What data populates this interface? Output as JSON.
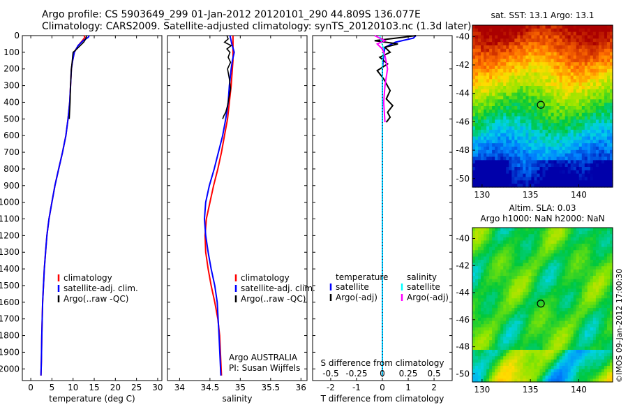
{
  "header": {
    "title_line1": "Argo profile: CS 5903649_299 01-Jan-2012 20120101_290 44.809S 136.077E",
    "title_line2": "Climatology: CARS2009. Satellite-adjusted climatology: synTS_20120103.nc (1.3d later)"
  },
  "colors": {
    "climatology": "#ff0000",
    "satellite": "#0000ff",
    "argo": "#000000",
    "sal_satellite": "#00ffff",
    "sal_argo": "#ff00ff"
  },
  "chart_data": [
    {
      "type": "line",
      "panel": "temperature",
      "xlabel": "temperature (deg C)",
      "ylabel": "",
      "xlim": [
        -2,
        31
      ],
      "ylim": [
        2070,
        0
      ],
      "xticks": [
        0,
        5,
        10,
        15,
        20,
        25,
        30
      ],
      "yticks": [
        0,
        100,
        200,
        300,
        400,
        500,
        600,
        700,
        800,
        900,
        1000,
        1100,
        1200,
        1300,
        1400,
        1500,
        1600,
        1700,
        1800,
        1900,
        2000
      ],
      "legend": [
        "climatology",
        "satellite-adj. clim.",
        "Argo(..raw -QC)"
      ],
      "series": [
        {
          "name": "climatology",
          "color": "#ff0000",
          "x": [
            12.6,
            12.8,
            12.2,
            11.2,
            10.3,
            9.9,
            9.6,
            9.4,
            9.2,
            8.8,
            8.3,
            7.5,
            6.6,
            5.7,
            5.0,
            4.3,
            3.8,
            3.5,
            3.2,
            3.0,
            2.8,
            2.6,
            2.5,
            2.4
          ],
          "y": [
            0,
            10,
            30,
            60,
            100,
            150,
            200,
            300,
            400,
            500,
            600,
            700,
            800,
            900,
            1000,
            1100,
            1200,
            1300,
            1400,
            1500,
            1600,
            1800,
            1950,
            2040
          ]
        },
        {
          "name": "satellite-adj. clim.",
          "color": "#0000ff",
          "x": [
            13.8,
            13.6,
            12.4,
            11.2,
            10.3,
            9.9,
            9.6,
            9.4,
            9.2,
            8.8,
            8.3,
            7.5,
            6.6,
            5.7,
            5.0,
            4.3,
            3.8,
            3.5,
            3.2,
            3.0,
            2.8,
            2.6,
            2.5,
            2.4
          ],
          "y": [
            0,
            10,
            30,
            60,
            100,
            150,
            200,
            300,
            400,
            500,
            600,
            700,
            800,
            900,
            1000,
            1100,
            1200,
            1300,
            1400,
            1500,
            1600,
            1800,
            1950,
            2040
          ]
        },
        {
          "name": "Argo(..raw -QC)",
          "color": "#000000",
          "x": [
            13.2,
            13.0,
            12.5,
            11.7,
            10.9,
            10.0,
            9.8,
            9.6,
            9.4,
            9.3,
            9.1
          ],
          "y": [
            0,
            20,
            40,
            60,
            80,
            100,
            150,
            200,
            300,
            400,
            500
          ]
        }
      ]
    },
    {
      "type": "line",
      "panel": "salinity",
      "xlabel": "salinity",
      "xlim": [
        33.8,
        36.1
      ],
      "ylim": [
        2070,
        0
      ],
      "xticks": [
        34,
        34.5,
        35,
        35.5,
        36
      ],
      "legend": [
        "climatology",
        "satellite-adj. clim.",
        "Argo(..raw -QC)"
      ],
      "annotation": [
        "Argo AUSTRALIA",
        "PI: Susan Wijffels"
      ],
      "series": [
        {
          "name": "climatology",
          "color": "#ff0000",
          "x": [
            34.88,
            34.88,
            34.88,
            34.88,
            34.87,
            34.85,
            34.82,
            34.79,
            34.74,
            34.69,
            34.63,
            34.56,
            34.5,
            34.44,
            34.42,
            34.43,
            34.47,
            34.52,
            34.58,
            34.63,
            34.66,
            34.69
          ],
          "y": [
            0,
            50,
            100,
            150,
            200,
            300,
            400,
            500,
            600,
            700,
            800,
            900,
            1000,
            1100,
            1200,
            1300,
            1400,
            1500,
            1600,
            1700,
            1800,
            2040
          ]
        },
        {
          "name": "satellite-adj. clim.",
          "color": "#0000ff",
          "x": [
            34.83,
            34.86,
            34.9,
            34.87,
            34.85,
            34.82,
            34.8,
            34.76,
            34.71,
            34.64,
            34.57,
            34.49,
            34.43,
            34.41,
            34.43,
            34.47,
            34.52,
            34.58,
            34.62,
            34.65,
            34.68
          ],
          "y": [
            0,
            50,
            100,
            150,
            200,
            300,
            400,
            500,
            600,
            700,
            800,
            900,
            1000,
            1100,
            1200,
            1300,
            1400,
            1500,
            1600,
            1800,
            2040
          ]
        },
        {
          "name": "Argo(..raw -QC)",
          "color": "#000000",
          "x": [
            34.78,
            34.8,
            34.74,
            34.85,
            34.78,
            34.83,
            34.8,
            34.84,
            34.79,
            34.82,
            34.84,
            34.81,
            34.79,
            34.76,
            34.73,
            34.71
          ],
          "y": [
            0,
            20,
            40,
            60,
            80,
            100,
            130,
            160,
            200,
            260,
            320,
            380,
            420,
            460,
            480,
            500
          ]
        }
      ]
    },
    {
      "type": "line",
      "panel": "difference",
      "xlabel": "T difference from climatology",
      "xlabel_top": "S difference from climatology",
      "xlim": [
        -2.7,
        2.7
      ],
      "ylim": [
        2070,
        0
      ],
      "xticks": [
        -2,
        -1,
        0,
        1,
        2
      ],
      "top_ticks": [
        "-0.5",
        "-0.25",
        "0",
        "0.25",
        "0.5"
      ],
      "legend_headers": [
        "temperature",
        "salinity"
      ],
      "legend": [
        "satellite",
        "Argo(-adj)",
        "satellite",
        "Argo(-adj)"
      ],
      "series": [
        {
          "name": "temperature satellite",
          "color": "#0000ff",
          "x": [
            1.3,
            1.2,
            0.5,
            0.1,
            0.05,
            0.0,
            0.0,
            0.0,
            0.0,
            0.0,
            0.0
          ],
          "y": [
            0,
            15,
            40,
            70,
            120,
            200,
            400,
            800,
            1200,
            1600,
            2040
          ]
        },
        {
          "name": "temperature Argo(-adj)",
          "color": "#000000",
          "x": [
            1.3,
            0.8,
            -0.3,
            0.6,
            0.1,
            0.3,
            -0.1,
            0.2,
            -0.2,
            0.05,
            0.3,
            0.15,
            0.4,
            0.2,
            0.3,
            0.15
          ],
          "y": [
            0,
            10,
            30,
            50,
            70,
            100,
            130,
            170,
            210,
            260,
            330,
            380,
            420,
            460,
            490,
            520
          ]
        },
        {
          "name": "salinity satellite",
          "color": "#00ffff",
          "x": [
            -0.1,
            -0.05,
            0.05,
            0.0,
            0.0,
            0.0,
            0.0,
            0.0,
            0.0
          ],
          "y": [
            0,
            30,
            80,
            150,
            300,
            600,
            1000,
            1500,
            2040
          ]
        },
        {
          "name": "salinity Argo(-adj)",
          "color": "#ff00ff",
          "x": [
            -0.3,
            -0.1,
            0.1,
            -0.2,
            0.0,
            0.1,
            0.2,
            0.1,
            0.05,
            0.1
          ],
          "y": [
            0,
            15,
            30,
            50,
            80,
            120,
            200,
            300,
            400,
            520
          ]
        }
      ]
    },
    {
      "type": "heatmap",
      "panel": "sst_map",
      "title": "sat. SST: 13.1 Argo: 13.1",
      "xlim": [
        129,
        143.5
      ],
      "ylim": [
        -50.6,
        -39.2
      ],
      "xticks": [
        130,
        135,
        140
      ],
      "yticks": [
        -40,
        -42,
        -44,
        -46,
        -48,
        -50
      ],
      "marker": {
        "lon": 136.077,
        "lat": -44.809
      }
    },
    {
      "type": "heatmap",
      "panel": "sla_map",
      "title_line1": "Altim. SLA: 0.03",
      "title_line2": "Argo h1000: NaN h2000: NaN",
      "xlim": [
        129,
        143.5
      ],
      "ylim": [
        -50.6,
        -39.2
      ],
      "xticks": [
        130,
        135,
        140
      ],
      "yticks": [
        -40,
        -42,
        -44,
        -46,
        -48,
        -50
      ],
      "marker": {
        "lon": 136.077,
        "lat": -44.809
      },
      "credit": "©IMOS 09-Jan-2012 17:00:30"
    }
  ]
}
